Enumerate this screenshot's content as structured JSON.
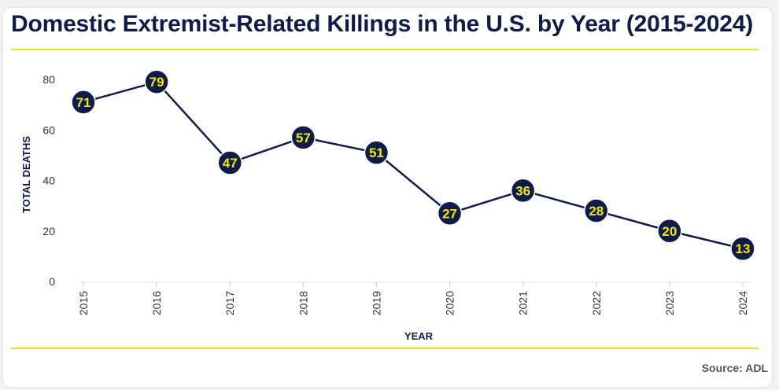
{
  "title": "Domestic Extremist-Related Killings in the U.S. by Year (2015-2024)",
  "source": "Source: ADL",
  "colors": {
    "line": "#0f1c4a",
    "marker_fill": "#0f1c4a",
    "marker_text": "#f5e600",
    "rule": "#f0dc1a",
    "title": "#0f1c4a"
  },
  "chart_data": {
    "type": "line",
    "title": "Domestic Extremist-Related Killings in the U.S. by Year (2015-2024)",
    "xlabel": "YEAR",
    "ylabel": "TOTAL DEATHS",
    "categories": [
      "2015",
      "2016",
      "2017",
      "2018",
      "2019",
      "2020",
      "2021",
      "2022",
      "2023",
      "2024"
    ],
    "values": [
      71,
      79,
      47,
      57,
      51,
      27,
      36,
      28,
      20,
      13
    ],
    "ylim": [
      0,
      80
    ],
    "yticks": [
      0,
      20,
      40,
      60,
      80
    ],
    "grid": false,
    "legend": "none"
  }
}
